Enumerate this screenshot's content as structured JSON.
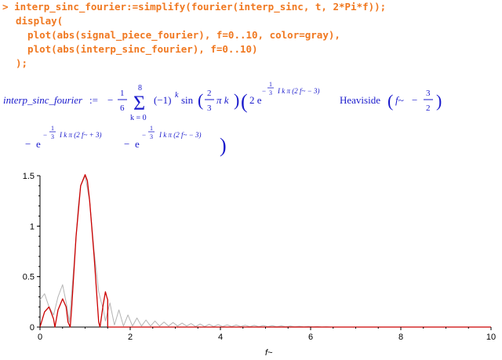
{
  "worksheet": {
    "prompt_symbol": ">",
    "code_lines": [
      "interp_sinc_fourier:=simplify(fourier(interp_sinc, t, 2*Pi*f));",
      "display(",
      "  plot(abs(signal_piece_fourier), f=0..10, color=gray),",
      "  plot(abs(interp_sinc_fourier), f=0..10)",
      ");"
    ]
  },
  "output": {
    "lhs": "interp_sinc_fourier",
    "assign": ":=",
    "minus": "−",
    "one": "1",
    "six": "6",
    "two": "2",
    "three": "3",
    "sum_upper": "8",
    "sum_lower": "k = 0",
    "minus_one_k": "(−1)",
    "k": "k",
    "sin": "sin",
    "pi_k": "π k",
    "two_e": "2 e",
    "exp_a": "I k π (2 f~ − 3)",
    "exp_b": "I k π (2 f~ + 3)",
    "e": "e",
    "heaviside": "Heaviside",
    "f_tilde": "f~",
    "sigma": "Σ"
  },
  "chart_data": {
    "type": "line",
    "xlabel": "f~",
    "ylabel": "",
    "xlim": [
      0,
      10
    ],
    "ylim": [
      0,
      1.5
    ],
    "x_ticks": [
      "0",
      "2",
      "4",
      "6",
      "8",
      "10"
    ],
    "y_ticks": [
      "0",
      "0.5",
      "1",
      "1.5"
    ],
    "series": [
      {
        "color": "#b4b4b4",
        "x": [
          0,
          0.1,
          0.2,
          0.3,
          0.4,
          0.5,
          0.6,
          0.65,
          0.75,
          0.85,
          0.9,
          1.0,
          1.1,
          1.2,
          1.3,
          1.35,
          1.4,
          1.45,
          1.55,
          1.65,
          1.75,
          1.85,
          1.95,
          2.05,
          2.15,
          2.25,
          2.35,
          2.45,
          2.55,
          2.65,
          2.75,
          2.85,
          2.95,
          3.05,
          3.15,
          3.25,
          3.35,
          3.45,
          3.55,
          3.65,
          3.75,
          3.85,
          3.95,
          4.05,
          4.15,
          4.25,
          4.35,
          4.45,
          4.55,
          4.65,
          4.75,
          4.85,
          4.95,
          5.05,
          5.15,
          5.25,
          5.35,
          5.45,
          5.55,
          5.65,
          5.75,
          5.85,
          5.95,
          6.05,
          6.15,
          6.25,
          6.35,
          6.45
        ],
        "values": [
          0.27,
          0.33,
          0.2,
          0.12,
          0.3,
          0.42,
          0.2,
          0.05,
          0.6,
          1.2,
          1.4,
          1.5,
          1.25,
          0.75,
          0.35,
          0.26,
          0.18,
          0.06,
          0.24,
          0.02,
          0.17,
          0.01,
          0.12,
          0.01,
          0.09,
          0.01,
          0.07,
          0.01,
          0.06,
          0.01,
          0.05,
          0.01,
          0.045,
          0.01,
          0.04,
          0.01,
          0.035,
          0.005,
          0.03,
          0.005,
          0.028,
          0.005,
          0.025,
          0.005,
          0.022,
          0.005,
          0.02,
          0.005,
          0.018,
          0.004,
          0.016,
          0.004,
          0.015,
          0.004,
          0.013,
          0.003,
          0.012,
          0.003,
          0.01,
          0.003,
          0.008,
          0.002,
          0.007,
          0.002,
          0.005,
          0.001,
          0.003,
          0.0
        ]
      },
      {
        "color": "#cc0000",
        "x": [
          0,
          0.1,
          0.2,
          0.3,
          0.33,
          0.4,
          0.5,
          0.58,
          0.62,
          0.67,
          0.7,
          0.8,
          0.9,
          1.0,
          1.05,
          1.1,
          1.2,
          1.3,
          1.33,
          1.4,
          1.45,
          1.48,
          1.5,
          1.5,
          10
        ],
        "values": [
          0,
          0.15,
          0.2,
          0.08,
          0,
          0.17,
          0.28,
          0.2,
          0.05,
          0,
          0.18,
          0.9,
          1.4,
          1.51,
          1.45,
          1.25,
          0.7,
          0.05,
          0,
          0.22,
          0.35,
          0.3,
          0.27,
          0,
          0
        ]
      }
    ]
  }
}
